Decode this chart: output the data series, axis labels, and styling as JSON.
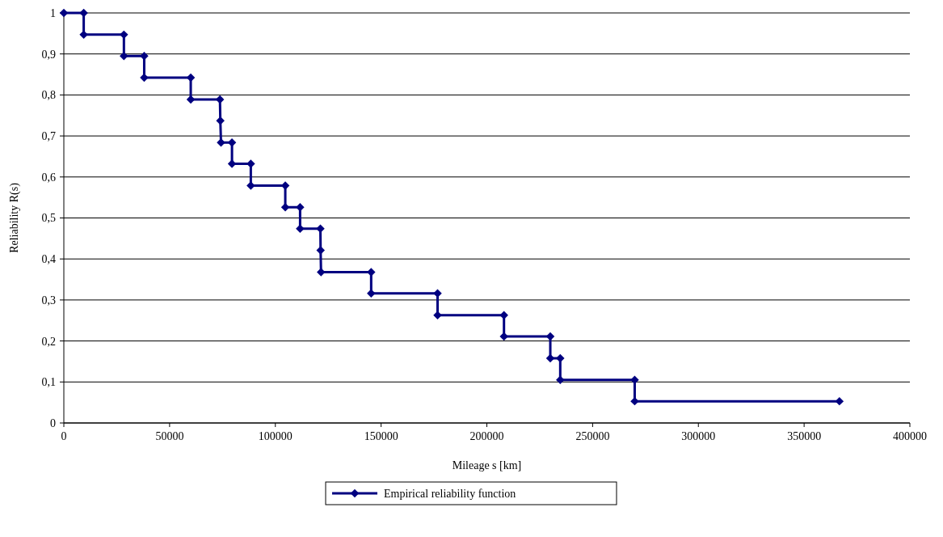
{
  "chart_data": {
    "type": "line",
    "xlabel": "Mileage s [km]",
    "ylabel": "Reliability R(s)",
    "series": [
      {
        "name": "Empirical reliability function",
        "color": "#000080",
        "x": [
          0,
          9400,
          9400,
          28400,
          28400,
          38000,
          38000,
          60000,
          60000,
          73800,
          74000,
          74300,
          79500,
          79500,
          88400,
          88400,
          104700,
          104700,
          111700,
          111700,
          121300,
          121400,
          121600,
          145300,
          145300,
          176700,
          176700,
          208100,
          208100,
          230000,
          230000,
          234700,
          234700,
          269900,
          269900,
          366700
        ],
        "values": [
          1,
          1,
          0.947,
          0.947,
          0.895,
          0.895,
          0.842,
          0.842,
          0.789,
          0.789,
          0.737,
          0.684,
          0.684,
          0.632,
          0.632,
          0.579,
          0.579,
          0.526,
          0.526,
          0.474,
          0.474,
          0.421,
          0.368,
          0.368,
          0.316,
          0.316,
          0.263,
          0.263,
          0.211,
          0.211,
          0.158,
          0.158,
          0.105,
          0.105,
          0.053,
          0.053
        ]
      }
    ],
    "xlim": [
      0,
      400000
    ],
    "xticks": [
      0,
      50000,
      100000,
      150000,
      200000,
      250000,
      300000,
      350000,
      400000
    ],
    "ylim": [
      0,
      1
    ],
    "yticks": [
      0,
      {
        "value": 0.1,
        "label": "0,1"
      },
      {
        "value": 0.2,
        "label": "0,2"
      },
      {
        "value": 0.3,
        "label": "0,3"
      },
      {
        "value": 0.4,
        "label": "0,4"
      },
      {
        "value": 0.5,
        "label": "0,5"
      },
      {
        "value": 0.6,
        "label": "0,6"
      },
      {
        "value": 0.7,
        "label": "0,7"
      },
      {
        "value": 0.8,
        "label": "0,8"
      },
      {
        "value": 0.9,
        "label": "0,9"
      },
      1
    ],
    "grid": "y",
    "legend": "bottom",
    "marker": "diamond",
    "line_style": "solid"
  }
}
